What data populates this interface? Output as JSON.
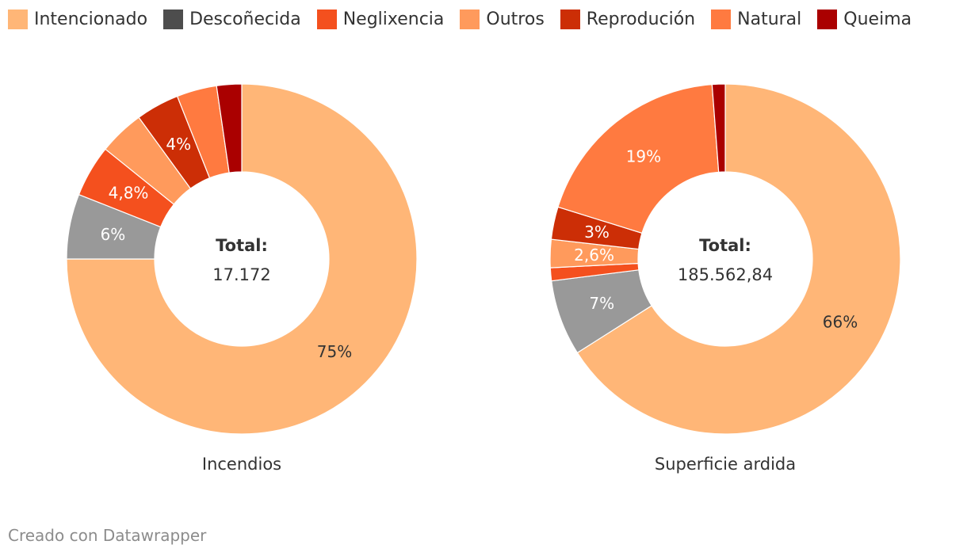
{
  "legend": [
    {
      "label": "Intencionado",
      "color": "#ffb677"
    },
    {
      "label": "Descoñecida",
      "color": "#4d4d4d"
    },
    {
      "label": "Neglixencia",
      "color": "#f4501e"
    },
    {
      "label": "Outros",
      "color": "#ff9a5c"
    },
    {
      "label": "Reprodución",
      "color": "#cc2e06"
    },
    {
      "label": "Natural",
      "color": "#ff7a40"
    },
    {
      "label": "Queima",
      "color": "#aa0000"
    }
  ],
  "chart_data": [
    {
      "type": "pie",
      "style": "donut",
      "title": "Incendios",
      "center_label": "Total:",
      "center_value": "17.172",
      "slices": [
        {
          "label": "Intencionado",
          "value": 75,
          "data_label": "75%"
        },
        {
          "label": "Desconecida",
          "value": 6,
          "data_label": "6%"
        },
        {
          "label": "Neglixencia",
          "value": 4.8,
          "data_label": "4,8%"
        },
        {
          "label": "Outros",
          "value": 4.2,
          "data_label": ""
        },
        {
          "label": "Reprodución",
          "value": 4,
          "data_label": "4%"
        },
        {
          "label": "Natural",
          "value": 3.7,
          "data_label": ""
        },
        {
          "label": "Queima",
          "value": 2.3,
          "data_label": ""
        }
      ]
    },
    {
      "type": "pie",
      "style": "donut",
      "title": "Superficie ardida",
      "center_label": "Total:",
      "center_value": "185.562,84",
      "slices": [
        {
          "label": "Intencionado",
          "value": 66,
          "data_label": "66%"
        },
        {
          "label": "Desconecida",
          "value": 7,
          "data_label": "7%"
        },
        {
          "label": "Neglixencia",
          "value": 1.2,
          "data_label": ""
        },
        {
          "label": "Outros",
          "value": 2.6,
          "data_label": "2,6%"
        },
        {
          "label": "Reprodución",
          "value": 3,
          "data_label": "3%"
        },
        {
          "label": "Natural",
          "value": 19,
          "data_label": "19%"
        },
        {
          "label": "Queima",
          "value": 1.2,
          "data_label": ""
        }
      ]
    }
  ],
  "footer": "Creado con Datawrapper"
}
